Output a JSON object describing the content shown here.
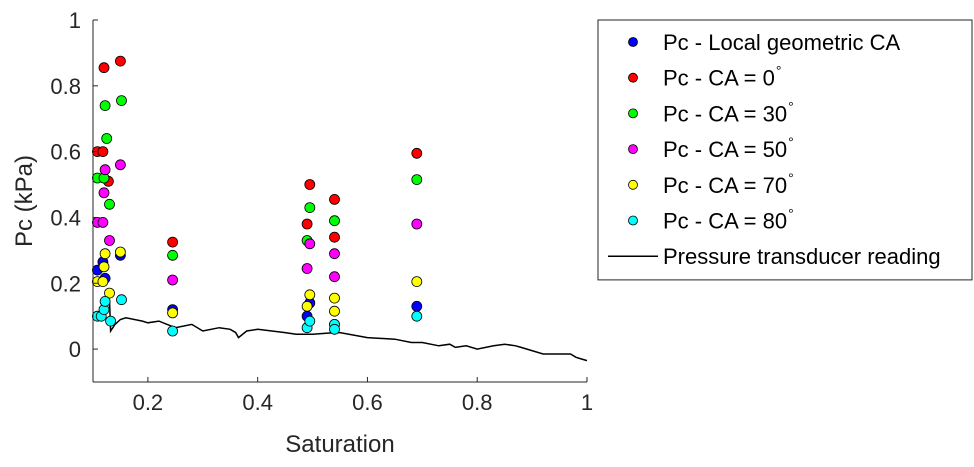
{
  "chart_data": {
    "type": "scatter",
    "xlabel": "Saturation",
    "ylabel": "Pc (kPa)",
    "xlim": [
      0.1,
      1.0
    ],
    "ylim": [
      -0.1,
      1.0
    ],
    "xticks": [
      0.2,
      0.4,
      0.6,
      0.8,
      1
    ],
    "xtick_labels": [
      "0.2",
      "0.4",
      "0.6",
      "0.8",
      "1"
    ],
    "yticks": [
      0,
      0.2,
      0.4,
      0.6,
      0.8,
      1
    ],
    "ytick_labels": [
      "0",
      "0.2",
      "0.4",
      "0.6",
      "0.8",
      "1"
    ],
    "grid": false,
    "legend_position": "top-right outside",
    "series": [
      {
        "name": "Pc - Local geometric CA",
        "name_main": "Pc - Local geometric CA",
        "name_sup": "",
        "color": "#0000ff",
        "type": "scatter",
        "x": [
          0.108,
          0.118,
          0.122,
          0.15,
          0.245,
          0.49,
          0.495,
          0.54,
          0.69
        ],
        "y": [
          0.24,
          0.265,
          0.215,
          0.285,
          0.12,
          0.1,
          0.14,
          0.075,
          0.13
        ]
      },
      {
        "name": "Pc - CA = 0°",
        "name_main": "Pc - CA = 0",
        "name_sup": "°",
        "color": "#ff0000",
        "type": "scatter",
        "x": [
          0.108,
          0.118,
          0.12,
          0.128,
          0.15,
          0.245,
          0.49,
          0.495,
          0.54,
          0.54,
          0.69
        ],
        "y": [
          0.6,
          0.6,
          0.855,
          0.51,
          0.875,
          0.325,
          0.38,
          0.5,
          0.455,
          0.34,
          0.595
        ]
      },
      {
        "name": "Pc - CA = 30°",
        "name_main": "Pc - CA = 30",
        "name_sup": "°",
        "color": "#00ff00",
        "type": "scatter",
        "x": [
          0.108,
          0.12,
          0.122,
          0.125,
          0.13,
          0.152,
          0.245,
          0.49,
          0.495,
          0.54,
          0.69
        ],
        "y": [
          0.52,
          0.52,
          0.74,
          0.64,
          0.44,
          0.755,
          0.285,
          0.33,
          0.43,
          0.39,
          0.515
        ]
      },
      {
        "name": "Pc - CA = 50°",
        "name_main": "Pc - CA = 50",
        "name_sup": "°",
        "color": "#ff00ff",
        "type": "scatter",
        "x": [
          0.108,
          0.118,
          0.12,
          0.122,
          0.13,
          0.15,
          0.245,
          0.49,
          0.495,
          0.54,
          0.54,
          0.69
        ],
        "y": [
          0.385,
          0.385,
          0.475,
          0.545,
          0.33,
          0.56,
          0.21,
          0.245,
          0.32,
          0.29,
          0.22,
          0.38
        ]
      },
      {
        "name": "Pc - CA = 70°",
        "name_main": "Pc - CA = 70",
        "name_sup": "°",
        "color": "#ffff00",
        "type": "scatter",
        "x": [
          0.108,
          0.118,
          0.12,
          0.122,
          0.13,
          0.15,
          0.245,
          0.49,
          0.495,
          0.54,
          0.54,
          0.69
        ],
        "y": [
          0.205,
          0.205,
          0.25,
          0.29,
          0.17,
          0.295,
          0.11,
          0.13,
          0.165,
          0.155,
          0.115,
          0.205
        ]
      },
      {
        "name": "Pc - CA = 80°",
        "name_main": "Pc - CA = 80",
        "name_sup": "°",
        "color": "#00ffff",
        "type": "scatter",
        "x": [
          0.108,
          0.115,
          0.12,
          0.122,
          0.132,
          0.152,
          0.245,
          0.49,
          0.495,
          0.54,
          0.54,
          0.69
        ],
        "y": [
          0.1,
          0.1,
          0.12,
          0.145,
          0.085,
          0.15,
          0.055,
          0.065,
          0.085,
          0.075,
          0.06,
          0.1
        ]
      },
      {
        "name": "Pressure transducer reading",
        "name_main": "Pressure transducer reading",
        "name_sup": "",
        "color": "#000000",
        "type": "line",
        "x": [
          0.13,
          0.132,
          0.14,
          0.15,
          0.16,
          0.19,
          0.2,
          0.22,
          0.25,
          0.28,
          0.3,
          0.33,
          0.35,
          0.36,
          0.365,
          0.38,
          0.4,
          0.45,
          0.47,
          0.5,
          0.54,
          0.55,
          0.6,
          0.65,
          0.68,
          0.7,
          0.73,
          0.75,
          0.76,
          0.78,
          0.8,
          0.83,
          0.85,
          0.87,
          0.88,
          0.92,
          0.95,
          0.97,
          0.98,
          0.99,
          1.0
        ],
        "y": [
          0.15,
          0.055,
          0.075,
          0.09,
          0.095,
          0.085,
          0.08,
          0.085,
          0.065,
          0.075,
          0.055,
          0.065,
          0.06,
          0.05,
          0.035,
          0.055,
          0.06,
          0.05,
          0.045,
          0.045,
          0.05,
          0.05,
          0.035,
          0.03,
          0.02,
          0.02,
          0.01,
          0.015,
          0.005,
          0.01,
          0.0,
          0.01,
          0.015,
          0.01,
          0.005,
          -0.015,
          -0.015,
          -0.015,
          -0.025,
          -0.03,
          -0.035
        ]
      }
    ]
  }
}
